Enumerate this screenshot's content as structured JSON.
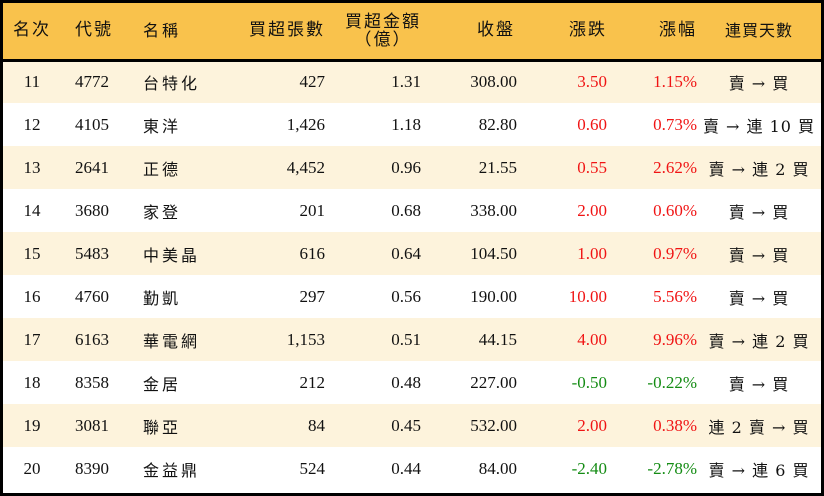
{
  "table": {
    "headers": {
      "rank": "名次",
      "code": "代號",
      "name": "名稱",
      "net_buy_lots": "買超張數",
      "net_buy_amount_line1": "買超金額",
      "net_buy_amount_line2": "（億）",
      "close": "收盤",
      "change": "漲跌",
      "change_pct": "漲幅",
      "consecutive_days": "連買天數"
    },
    "colors": {
      "header_bg": "#f9c24c",
      "row_odd_bg": "#fdf3dc",
      "row_even_bg": "#ffffff",
      "up": "#f01414",
      "down": "#148c14"
    },
    "rows": [
      {
        "rank": "11",
        "code": "4772",
        "name": "台特化",
        "lots": "427",
        "amount": "1.31",
        "close": "308.00",
        "change": "3.50",
        "pct": "1.15%",
        "days": "賣 → 買",
        "dir": "up"
      },
      {
        "rank": "12",
        "code": "4105",
        "name": "東洋",
        "lots": "1,426",
        "amount": "1.18",
        "close": "82.80",
        "change": "0.60",
        "pct": "0.73%",
        "days": "賣 → 連 10 買",
        "dir": "up"
      },
      {
        "rank": "13",
        "code": "2641",
        "name": "正德",
        "lots": "4,452",
        "amount": "0.96",
        "close": "21.55",
        "change": "0.55",
        "pct": "2.62%",
        "days": "賣 → 連 2 買",
        "dir": "up"
      },
      {
        "rank": "14",
        "code": "3680",
        "name": "家登",
        "lots": "201",
        "amount": "0.68",
        "close": "338.00",
        "change": "2.00",
        "pct": "0.60%",
        "days": "賣 → 買",
        "dir": "up"
      },
      {
        "rank": "15",
        "code": "5483",
        "name": "中美晶",
        "lots": "616",
        "amount": "0.64",
        "close": "104.50",
        "change": "1.00",
        "pct": "0.97%",
        "days": "賣 → 買",
        "dir": "up"
      },
      {
        "rank": "16",
        "code": "4760",
        "name": "勤凱",
        "lots": "297",
        "amount": "0.56",
        "close": "190.00",
        "change": "10.00",
        "pct": "5.56%",
        "days": "賣 → 買",
        "dir": "up"
      },
      {
        "rank": "17",
        "code": "6163",
        "name": "華電網",
        "lots": "1,153",
        "amount": "0.51",
        "close": "44.15",
        "change": "4.00",
        "pct": "9.96%",
        "days": "賣 → 連 2 買",
        "dir": "up"
      },
      {
        "rank": "18",
        "code": "8358",
        "name": "金居",
        "lots": "212",
        "amount": "0.48",
        "close": "227.00",
        "change": "-0.50",
        "pct": "-0.22%",
        "days": "賣 → 買",
        "dir": "down"
      },
      {
        "rank": "19",
        "code": "3081",
        "name": "聯亞",
        "lots": "84",
        "amount": "0.45",
        "close": "532.00",
        "change": "2.00",
        "pct": "0.38%",
        "days": "連 2 賣 → 買",
        "dir": "up"
      },
      {
        "rank": "20",
        "code": "8390",
        "name": "金益鼎",
        "lots": "524",
        "amount": "0.44",
        "close": "84.00",
        "change": "-2.40",
        "pct": "-2.78%",
        "days": "賣 → 連 6 買",
        "dir": "down"
      }
    ]
  }
}
